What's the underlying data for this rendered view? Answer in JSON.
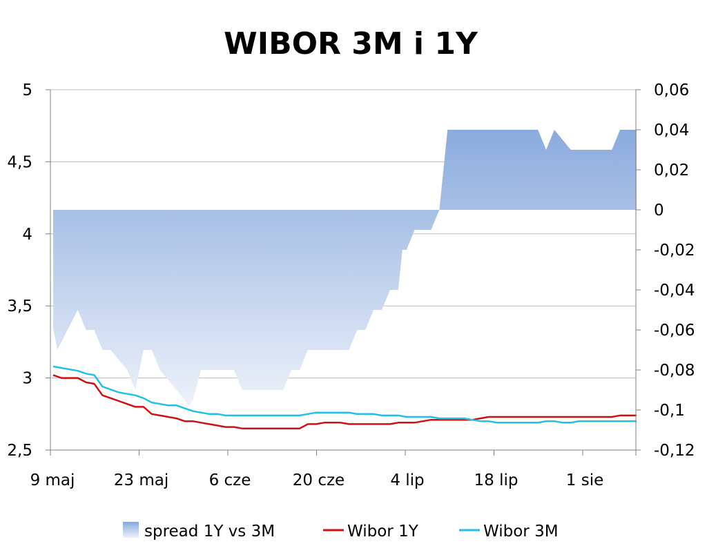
{
  "chart_data": {
    "type": "line",
    "title": "WIBOR 3M i 1Y",
    "x_tick_labels": [
      "9 maj",
      "23 maj",
      "6 cze",
      "20 cze",
      "4 lip",
      "18 lip",
      "1 sie"
    ],
    "y_left": {
      "ticks": [
        "5",
        "4,5",
        "4",
        "3,5",
        "3",
        "2,5"
      ],
      "range": [
        2.5,
        5.0
      ]
    },
    "y_right": {
      "ticks": [
        "0,06",
        "0,04",
        "0,02",
        "0",
        "-0,02",
        "-0,04",
        "-0,06",
        "-0,08",
        "-0,1",
        "-0,12"
      ],
      "range": [
        -0.12,
        0.06
      ]
    },
    "grid": "horizontal",
    "legend_position": "bottom",
    "series": [
      {
        "name": "spread 1Y vs 3M",
        "kind": "area",
        "axis": "right",
        "color": "#8eb0e0",
        "points": [
          [
            0,
            -0.059
          ],
          [
            0.5,
            -0.07
          ],
          [
            3,
            -0.05
          ],
          [
            4,
            -0.06
          ],
          [
            5,
            -0.06
          ],
          [
            6,
            -0.07
          ],
          [
            7,
            -0.07
          ],
          [
            8,
            -0.075
          ],
          [
            9,
            -0.08
          ],
          [
            10,
            -0.09
          ],
          [
            11,
            -0.07
          ],
          [
            12,
            -0.07
          ],
          [
            13,
            -0.08
          ],
          [
            14,
            -0.085
          ],
          [
            15,
            -0.09
          ],
          [
            16,
            -0.095
          ],
          [
            16.5,
            -0.098
          ],
          [
            17,
            -0.095
          ],
          [
            18,
            -0.08
          ],
          [
            19,
            -0.08
          ],
          [
            20,
            -0.08
          ],
          [
            21,
            -0.08
          ],
          [
            22,
            -0.08
          ],
          [
            23,
            -0.09
          ],
          [
            24,
            -0.09
          ],
          [
            25,
            -0.09
          ],
          [
            26,
            -0.09
          ],
          [
            27,
            -0.09
          ],
          [
            28,
            -0.09
          ],
          [
            29,
            -0.08
          ],
          [
            30,
            -0.08
          ],
          [
            31,
            -0.07
          ],
          [
            32,
            -0.07
          ],
          [
            33,
            -0.07
          ],
          [
            34,
            -0.07
          ],
          [
            35,
            -0.07
          ],
          [
            36,
            -0.07
          ],
          [
            37,
            -0.06
          ],
          [
            38,
            -0.06
          ],
          [
            39,
            -0.05
          ],
          [
            40,
            -0.05
          ],
          [
            41,
            -0.04
          ],
          [
            42,
            -0.04
          ],
          [
            42.5,
            -0.02
          ],
          [
            43,
            -0.02
          ],
          [
            44,
            -0.01
          ],
          [
            45,
            -0.01
          ],
          [
            46,
            -0.01
          ],
          [
            47,
            0
          ],
          [
            48,
            0.04
          ],
          [
            49,
            0.04
          ],
          [
            50,
            0.04
          ],
          [
            51,
            0.04
          ],
          [
            52,
            0.04
          ],
          [
            53,
            0.04
          ],
          [
            54,
            0.04
          ],
          [
            55,
            0.04
          ],
          [
            56,
            0.04
          ],
          [
            57,
            0.04
          ],
          [
            58,
            0.04
          ],
          [
            59,
            0.04
          ],
          [
            60,
            0.03
          ],
          [
            61,
            0.04
          ],
          [
            62,
            0.035
          ],
          [
            63,
            0.03
          ],
          [
            64,
            0.03
          ],
          [
            65,
            0.03
          ],
          [
            66,
            0.03
          ],
          [
            67,
            0.03
          ],
          [
            68,
            0.03
          ],
          [
            69,
            0.04
          ],
          [
            70,
            0.04
          ],
          [
            71,
            0.04
          ]
        ]
      },
      {
        "name": "Wibor 1Y",
        "kind": "line",
        "axis": "left",
        "color": "#d01010",
        "points": [
          [
            0,
            3.02
          ],
          [
            1,
            3.0
          ],
          [
            2,
            3.0
          ],
          [
            3,
            3.0
          ],
          [
            4,
            2.97
          ],
          [
            5,
            2.96
          ],
          [
            6,
            2.88
          ],
          [
            7,
            2.86
          ],
          [
            8,
            2.84
          ],
          [
            9,
            2.82
          ],
          [
            10,
            2.8
          ],
          [
            11,
            2.8
          ],
          [
            12,
            2.75
          ],
          [
            13,
            2.74
          ],
          [
            14,
            2.73
          ],
          [
            15,
            2.72
          ],
          [
            16,
            2.7
          ],
          [
            17,
            2.7
          ],
          [
            18,
            2.69
          ],
          [
            19,
            2.68
          ],
          [
            20,
            2.67
          ],
          [
            21,
            2.66
          ],
          [
            22,
            2.66
          ],
          [
            23,
            2.65
          ],
          [
            24,
            2.65
          ],
          [
            25,
            2.65
          ],
          [
            26,
            2.65
          ],
          [
            27,
            2.65
          ],
          [
            28,
            2.65
          ],
          [
            29,
            2.65
          ],
          [
            30,
            2.65
          ],
          [
            31,
            2.68
          ],
          [
            32,
            2.68
          ],
          [
            33,
            2.69
          ],
          [
            34,
            2.69
          ],
          [
            35,
            2.69
          ],
          [
            36,
            2.68
          ],
          [
            37,
            2.68
          ],
          [
            38,
            2.68
          ],
          [
            39,
            2.68
          ],
          [
            40,
            2.68
          ],
          [
            41,
            2.68
          ],
          [
            42,
            2.69
          ],
          [
            43,
            2.69
          ],
          [
            44,
            2.69
          ],
          [
            45,
            2.7
          ],
          [
            46,
            2.71
          ],
          [
            47,
            2.71
          ],
          [
            48,
            2.71
          ],
          [
            49,
            2.71
          ],
          [
            50,
            2.71
          ],
          [
            51,
            2.71
          ],
          [
            52,
            2.72
          ],
          [
            53,
            2.73
          ],
          [
            54,
            2.73
          ],
          [
            55,
            2.73
          ],
          [
            56,
            2.73
          ],
          [
            57,
            2.73
          ],
          [
            58,
            2.73
          ],
          [
            59,
            2.73
          ],
          [
            60,
            2.73
          ],
          [
            61,
            2.73
          ],
          [
            62,
            2.73
          ],
          [
            63,
            2.73
          ],
          [
            64,
            2.73
          ],
          [
            65,
            2.73
          ],
          [
            66,
            2.73
          ],
          [
            67,
            2.73
          ],
          [
            68,
            2.73
          ],
          [
            69,
            2.74
          ],
          [
            70,
            2.74
          ],
          [
            71,
            2.74
          ]
        ]
      },
      {
        "name": "Wibor 3M",
        "kind": "line",
        "axis": "left",
        "color": "#22c0e8",
        "points": [
          [
            0,
            3.08
          ],
          [
            1,
            3.07
          ],
          [
            2,
            3.06
          ],
          [
            3,
            3.05
          ],
          [
            4,
            3.03
          ],
          [
            5,
            3.02
          ],
          [
            6,
            2.94
          ],
          [
            7,
            2.92
          ],
          [
            8,
            2.9
          ],
          [
            9,
            2.89
          ],
          [
            10,
            2.88
          ],
          [
            11,
            2.86
          ],
          [
            12,
            2.83
          ],
          [
            13,
            2.82
          ],
          [
            14,
            2.81
          ],
          [
            15,
            2.81
          ],
          [
            16,
            2.79
          ],
          [
            17,
            2.77
          ],
          [
            18,
            2.76
          ],
          [
            19,
            2.75
          ],
          [
            20,
            2.75
          ],
          [
            21,
            2.74
          ],
          [
            22,
            2.74
          ],
          [
            23,
            2.74
          ],
          [
            24,
            2.74
          ],
          [
            25,
            2.74
          ],
          [
            26,
            2.74
          ],
          [
            27,
            2.74
          ],
          [
            28,
            2.74
          ],
          [
            29,
            2.74
          ],
          [
            30,
            2.74
          ],
          [
            31,
            2.75
          ],
          [
            32,
            2.76
          ],
          [
            33,
            2.76
          ],
          [
            34,
            2.76
          ],
          [
            35,
            2.76
          ],
          [
            36,
            2.76
          ],
          [
            37,
            2.75
          ],
          [
            38,
            2.75
          ],
          [
            39,
            2.75
          ],
          [
            40,
            2.74
          ],
          [
            41,
            2.74
          ],
          [
            42,
            2.74
          ],
          [
            43,
            2.73
          ],
          [
            44,
            2.73
          ],
          [
            45,
            2.73
          ],
          [
            46,
            2.73
          ],
          [
            47,
            2.72
          ],
          [
            48,
            2.72
          ],
          [
            49,
            2.72
          ],
          [
            50,
            2.72
          ],
          [
            51,
            2.71
          ],
          [
            52,
            2.7
          ],
          [
            53,
            2.7
          ],
          [
            54,
            2.69
          ],
          [
            55,
            2.69
          ],
          [
            56,
            2.69
          ],
          [
            57,
            2.69
          ],
          [
            58,
            2.69
          ],
          [
            59,
            2.69
          ],
          [
            60,
            2.7
          ],
          [
            61,
            2.7
          ],
          [
            62,
            2.69
          ],
          [
            63,
            2.69
          ],
          [
            64,
            2.7
          ],
          [
            65,
            2.7
          ],
          [
            66,
            2.7
          ],
          [
            67,
            2.7
          ],
          [
            68,
            2.7
          ],
          [
            69,
            2.7
          ],
          [
            70,
            2.7
          ],
          [
            71,
            2.7
          ]
        ]
      }
    ]
  }
}
